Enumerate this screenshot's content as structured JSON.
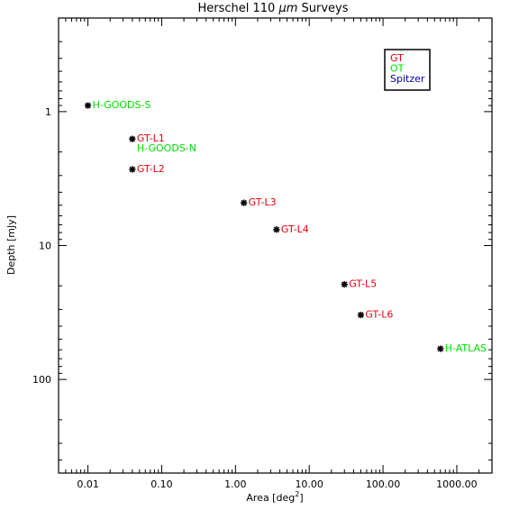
{
  "chart_data": {
    "type": "scatter",
    "title_pre": "Herschel 110 ",
    "title_sym": "μm",
    "title_post": " Surveys",
    "xlabel_pre": "Area [deg",
    "xlabel_sup": "2",
    "xlabel_post": "]",
    "ylabel": "Depth [mJy]",
    "x_scale": "log",
    "y_scale": "log",
    "y_inverted": true,
    "xlim": [
      0.004,
      3000
    ],
    "ylim": [
      0.2,
      500
    ],
    "x_ticks": [
      0.01,
      0.1,
      1,
      10,
      100,
      1000
    ],
    "x_tick_labels": [
      "0.01",
      "0.10",
      "1.00",
      "10.00",
      "100.00",
      "1000.00"
    ],
    "y_ticks": [
      1,
      10,
      100
    ],
    "y_tick_labels": [
      "1",
      "10",
      "100"
    ],
    "grid": false,
    "legend_position": "top-right",
    "legend": [
      {
        "label": "GT",
        "color": "#e8000b"
      },
      {
        "label": "OT",
        "color": "#00dd00"
      },
      {
        "label": "Spitzer",
        "color": "#0000aa"
      }
    ],
    "points": [
      {
        "label": "H-GOODS-S",
        "x": 0.01,
        "y": 0.9,
        "group": "OT"
      },
      {
        "label": "GT-L1",
        "x": 0.04,
        "y": 1.6,
        "group": "GT"
      },
      {
        "label": "H-GOODS-N",
        "x": 0.04,
        "y": 1.6,
        "group": "OT"
      },
      {
        "label": "GT-L2",
        "x": 0.04,
        "y": 2.7,
        "group": "GT"
      },
      {
        "label": "GT-L3",
        "x": 1.3,
        "y": 4.8,
        "group": "GT"
      },
      {
        "label": "GT-L4",
        "x": 3.6,
        "y": 7.6,
        "group": "GT"
      },
      {
        "label": "GT-L5",
        "x": 30,
        "y": 19.5,
        "group": "GT"
      },
      {
        "label": "GT-L6",
        "x": 50,
        "y": 33,
        "group": "GT"
      },
      {
        "label": "H-ATLAS",
        "x": 600,
        "y": 59,
        "group": "OT"
      }
    ]
  }
}
